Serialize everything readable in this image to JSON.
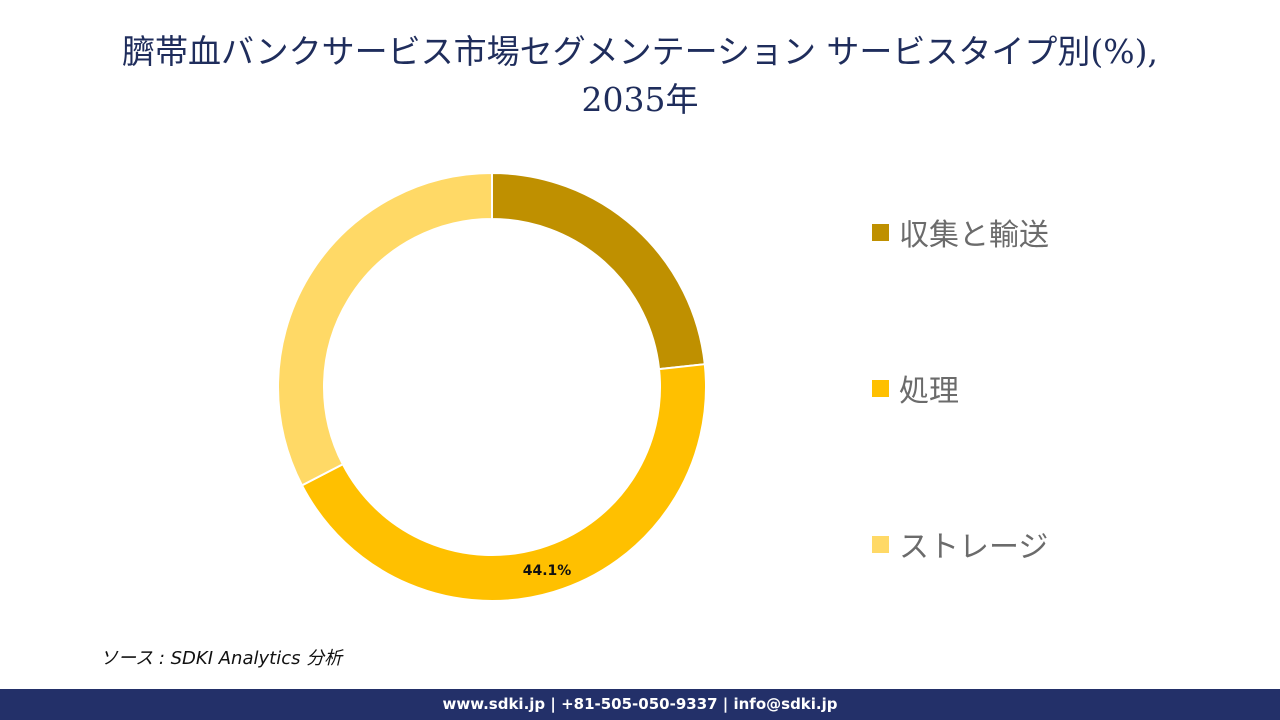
{
  "title_lines": [
    "臍帯血バンクサービス市場セグメンテーション サービスタイプ別(%),",
    "2035年"
  ],
  "chart_data": {
    "type": "pie",
    "donut": true,
    "categories": [
      "収集と輸送",
      "処理",
      "ストレージ"
    ],
    "values": [
      23.3,
      44.1,
      32.6
    ],
    "colors": [
      "#bf9000",
      "#ffc000",
      "#ffd966"
    ],
    "data_labels": [
      "",
      "44.1%",
      ""
    ],
    "legend_position": "right"
  },
  "source_text": "ソース : SDKI Analytics 分析",
  "footer_text": "www.sdki.jp | +81-505-050-9337 | info@sdki.jp"
}
